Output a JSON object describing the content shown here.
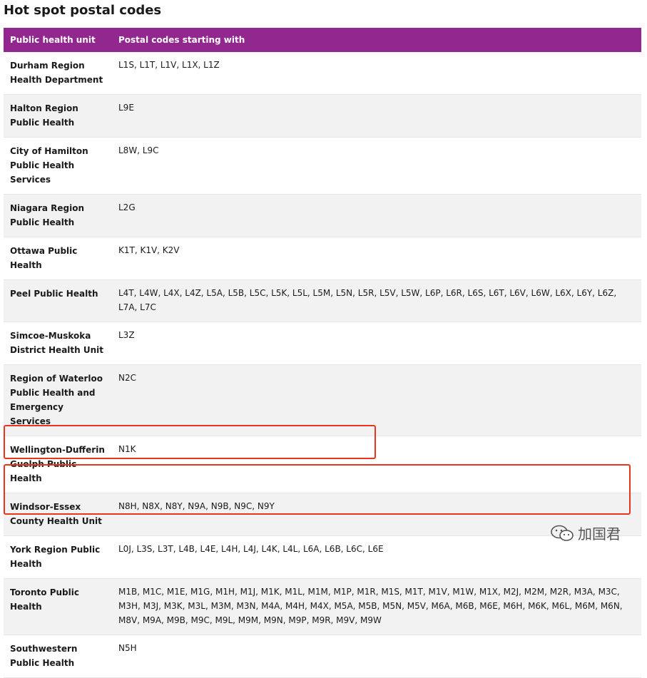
{
  "title": "Hot spot postal codes",
  "table": {
    "headers": [
      "Public health unit",
      "Postal codes starting with"
    ],
    "rows": [
      {
        "unit": "Durham Region Health Department",
        "codes": "L1S, L1T, L1V, L1X, L1Z"
      },
      {
        "unit": "Halton Region Public Health",
        "codes": "L9E"
      },
      {
        "unit": "City of Hamilton Public Health Services",
        "codes": "L8W, L9C"
      },
      {
        "unit": "Niagara Region Public Health",
        "codes": "L2G"
      },
      {
        "unit": "Ottawa Public Health",
        "codes": "K1T, K1V, K2V"
      },
      {
        "unit": "Peel Public Health",
        "codes": "L4T, L4W, L4X, L4Z, L5A, L5B, L5C, L5K, L5L, L5M, L5N, L5R, L5V, L5W, L6P, L6R, L6S, L6T, L6V, L6W, L6X, L6Y, L6Z, L7A, L7C"
      },
      {
        "unit": "Simcoe-Muskoka District Health Unit",
        "codes": "L3Z"
      },
      {
        "unit": "Region of Waterloo Public Health and Emergency Services",
        "codes": "N2C"
      },
      {
        "unit": "Wellington-Dufferin Guelph Public Health",
        "codes": "N1K"
      },
      {
        "unit": "Windsor-Essex County Health Unit",
        "codes": "N8H, N8X, N8Y, N9A, N9B, N9C, N9Y"
      },
      {
        "unit": "York Region Public Health",
        "codes": "L0J, L3S, L3T, L4B, L4E, L4H, L4J, L4K, L4L, L6A, L6B, L6C, L6E"
      },
      {
        "unit": "Toronto Public Health",
        "codes": "M1B, M1C, M1E, M1G, M1H, M1J, M1K, M1L, M1M, M1P, M1R, M1S, M1T, M1V, M1W, M1X, M2J, M2M, M2R, M3A, M3C, M3H, M3J, M3K, M3L, M3M, M3N, M4A, M4H, M4X, M5A, M5B, M5N, M5V, M6A, M6B, M6E, M6H, M6K, M6L, M6M, M6N, M8V, M9A, M9B, M9C, M9L, M9M, M9N, M9P, M9R, M9V, M9W"
      },
      {
        "unit": "Southwestern Public Health",
        "codes": "N5H"
      }
    ]
  },
  "colors": {
    "header_bg": "#92278f",
    "highlight": "#e8361e",
    "stripe": "#f2f2f2"
  },
  "watermark": {
    "icon": "wechat-icon",
    "text": "加国君"
  }
}
